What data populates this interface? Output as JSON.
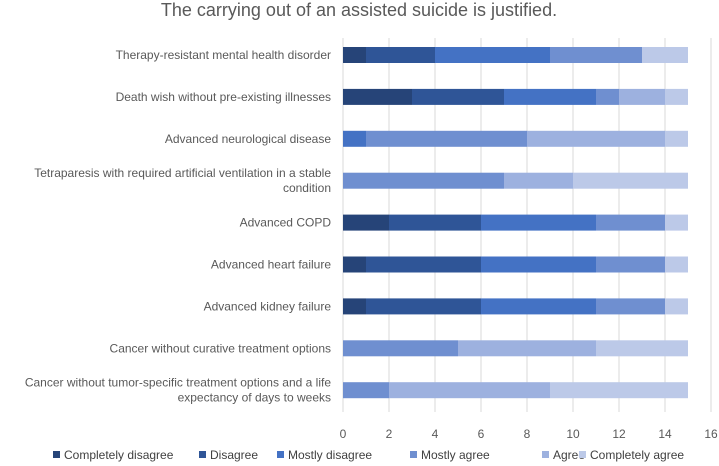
{
  "chart_data": {
    "type": "bar",
    "orientation": "horizontal",
    "stacked": true,
    "title": "The carrying out of an assisted suicide is justified.",
    "xlabel": "",
    "ylabel": "",
    "xlim": [
      0,
      16
    ],
    "xticks": [
      0,
      2,
      4,
      6,
      8,
      10,
      12,
      14,
      16
    ],
    "grid": true,
    "legend_position": "bottom",
    "categories": [
      [
        "Therapy-resistant mental health disorder"
      ],
      [
        "Death wish without pre-existing illnesses"
      ],
      [
        "Advanced neurological disease"
      ],
      [
        "Tetraparesis with required artificial ventilation in a stable",
        "condition"
      ],
      [
        "Advanced COPD"
      ],
      [
        "Advanced heart failure"
      ],
      [
        "Advanced kidney failure"
      ],
      [
        "Cancer without curative treatment options"
      ],
      [
        "Cancer without tumor-specific treatment options and a life",
        "expectancy of days to weeks"
      ]
    ],
    "series": [
      {
        "name": "Completely disagree",
        "color": "#264478",
        "values": [
          1,
          3,
          0,
          0,
          2,
          1,
          1,
          0,
          0
        ]
      },
      {
        "name": "Disagree",
        "color": "#2f5597",
        "values": [
          3,
          4,
          0,
          0,
          4,
          5,
          5,
          0,
          0
        ]
      },
      {
        "name": "Mostly disagree",
        "color": "#4472c4",
        "values": [
          5,
          4,
          1,
          0,
          5,
          5,
          5,
          0,
          0
        ]
      },
      {
        "name": "Mostly agree",
        "color": "#6f8fd0",
        "values": [
          4,
          1,
          7,
          7,
          3,
          3,
          3,
          5,
          2
        ]
      },
      {
        "name": "Agree",
        "color": "#9db1df",
        "values": [
          0,
          2,
          6,
          3,
          0,
          0,
          0,
          6,
          7
        ]
      },
      {
        "name": "Completely agree",
        "color": "#bcc9e8",
        "values": [
          2,
          1,
          1,
          5,
          1,
          1,
          1,
          4,
          6
        ]
      }
    ]
  }
}
